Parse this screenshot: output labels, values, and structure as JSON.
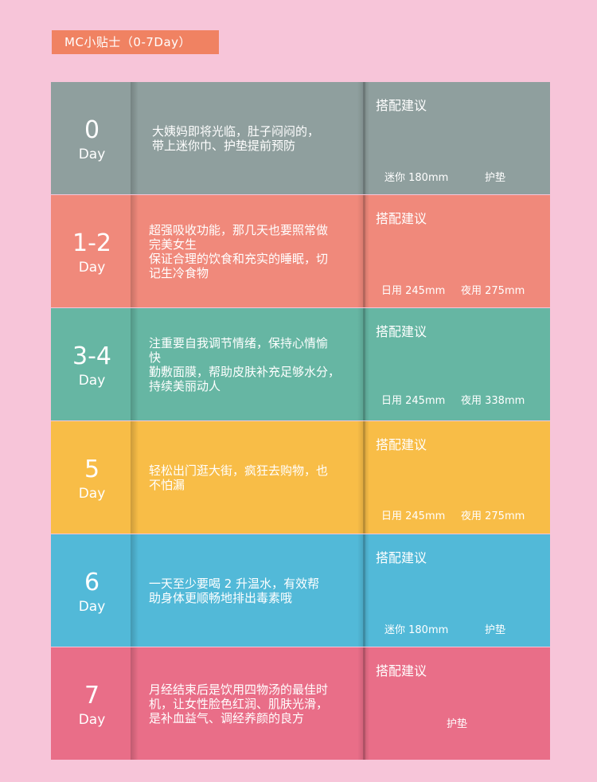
{
  "header": {
    "title": "MC小贴士（0-7Day）"
  },
  "rows": [
    {
      "day": "0",
      "unit": "Day",
      "color": "#8f9f9e",
      "desc": "大姨妈即将光临，肚子闷闷的，\n带上迷你巾、护垫提前预防",
      "suggest_label": "搭配建议",
      "products": [
        "迷你 180mm",
        "护垫"
      ]
    },
    {
      "day": "1-2",
      "unit": "Day",
      "color": "#f0897b",
      "desc": "超强吸收功能，那几天也要照常做\n完美女生\n保证合理的饮食和充实的睡眠，切\n记生冷食物",
      "suggest_label": "搭配建议",
      "products": [
        "日用 245mm",
        "夜用 275mm"
      ]
    },
    {
      "day": "3-4",
      "unit": "Day",
      "color": "#66b6a3",
      "desc": "注重要自我调节情绪，保持心情愉\n快\n勤敷面膜，帮助皮肤补充足够水分，\n持续美丽动人",
      "suggest_label": "搭配建议",
      "products": [
        "日用 245mm",
        "夜用 338mm"
      ]
    },
    {
      "day": "5",
      "unit": "Day",
      "color": "#f8bd47",
      "desc": "轻松出门逛大街，疯狂去购物，也\n不怕漏",
      "suggest_label": "搭配建议",
      "products": [
        "日用 245mm",
        "夜用 275mm"
      ]
    },
    {
      "day": "6",
      "unit": "Day",
      "color": "#52b9d8",
      "desc": "一天至少要喝 2 升温水，有效帮\n助身体更顺畅地排出毒素哦",
      "suggest_label": "搭配建议",
      "products": [
        "迷你 180mm",
        "护垫"
      ]
    },
    {
      "day": "7",
      "unit": "Day",
      "color": "#e96e88",
      "desc": "月经结束后是饮用四物汤的最佳时\n机，让女性脸色红润、肌肤光滑，\n是补血益气、调经养颜的良方",
      "suggest_label": "搭配建议",
      "products": [
        "护垫"
      ]
    }
  ]
}
